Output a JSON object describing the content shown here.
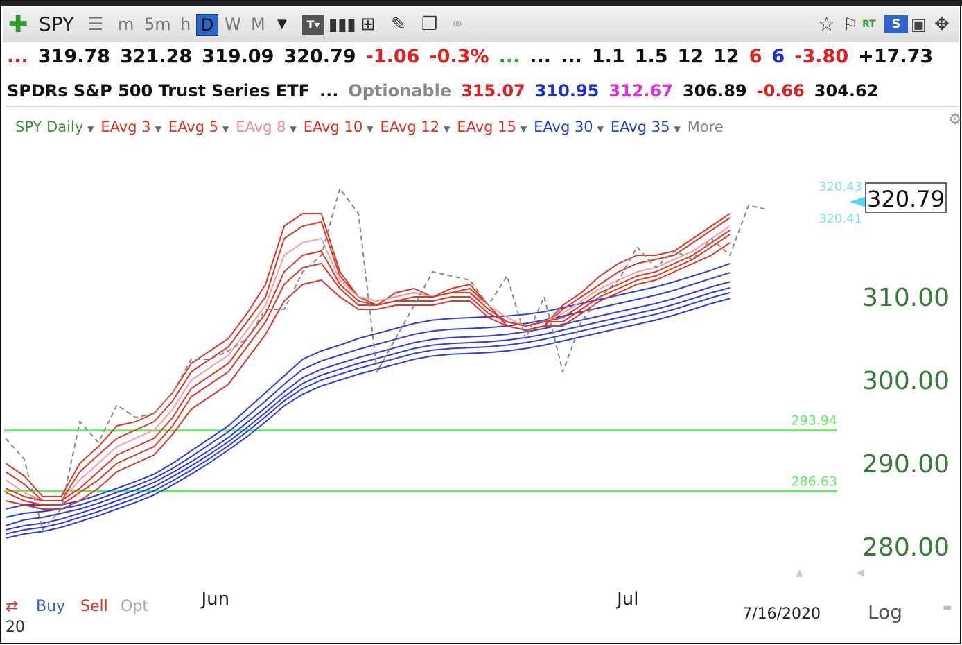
{
  "toolbar": {
    "symbol": "SPY",
    "intervals": [
      "m",
      "5m",
      "h",
      "D",
      "W",
      "M"
    ],
    "right_icons": [
      "star-icon",
      "flag-icon",
      "rt-icon",
      "sv-icon",
      "window-icon",
      "move-icon"
    ],
    "rt_label": "RT",
    "sv_label": "S"
  },
  "quote_row1": [
    {
      "text": "...",
      "color": "#d62020"
    },
    {
      "text": "319.78",
      "color": "#111111"
    },
    {
      "text": "321.28",
      "color": "#111111"
    },
    {
      "text": "319.09",
      "color": "#111111"
    },
    {
      "text": "320.79",
      "color": "#111111"
    },
    {
      "text": "-1.06",
      "color": "#e02020"
    },
    {
      "text": "-0.3%",
      "color": "#e02020"
    },
    {
      "text": "...",
      "color": "#22aa22"
    },
    {
      "text": "...",
      "color": "#111111"
    },
    {
      "text": "...",
      "color": "#111111"
    },
    {
      "text": "1.1",
      "color": "#111111"
    },
    {
      "text": "1.5",
      "color": "#111111"
    },
    {
      "text": "12",
      "color": "#111111"
    },
    {
      "text": "12",
      "color": "#111111"
    },
    {
      "text": "6",
      "color": "#e02020"
    },
    {
      "text": "6",
      "color": "#1a2fd6"
    },
    {
      "text": "-3.80",
      "color": "#e02020"
    },
    {
      "text": "+17.73",
      "color": "#111111"
    }
  ],
  "quote_row2": [
    {
      "text": "SPDRs S&P 500 Trust Series ETF",
      "color": "#111111"
    },
    {
      "text": "...",
      "color": "#111111"
    },
    {
      "text": "Optionable",
      "color": "#888888"
    },
    {
      "text": "315.07",
      "color": "#e02020"
    },
    {
      "text": "310.95",
      "color": "#1a2fd6"
    },
    {
      "text": "312.67",
      "color": "#e030e0"
    },
    {
      "text": "306.89",
      "color": "#111111"
    },
    {
      "text": "-0.66",
      "color": "#e02020"
    },
    {
      "text": "304.62",
      "color": "#111111"
    }
  ],
  "legend": [
    {
      "label": "SPY Daily",
      "color": "#3f8f3f"
    },
    {
      "label": "EAvg 3",
      "color": "#e03020"
    },
    {
      "label": "EAvg 5",
      "color": "#e03020"
    },
    {
      "label": "EAvg 8",
      "color": "#f08a8a"
    },
    {
      "label": "EAvg 10",
      "color": "#e03020"
    },
    {
      "label": "EAvg 12",
      "color": "#e03020"
    },
    {
      "label": "EAvg 15",
      "color": "#e03020"
    },
    {
      "label": "EAvg 30",
      "color": "#2040d8"
    },
    {
      "label": "EAvg 35",
      "color": "#2040d8"
    },
    {
      "label": "More",
      "color": "#888888"
    }
  ],
  "chart_data": {
    "type": "line",
    "y_axis_ticks": [
      310,
      300,
      290,
      280
    ],
    "y_tick_labels": [
      "310.00",
      "300.00",
      "290.00",
      "280.00"
    ],
    "ylim": [
      276.5,
      326.5
    ],
    "x_labels": [
      {
        "label": "Jun",
        "index": 11.3
      },
      {
        "label": "Jul",
        "index": 33.5
      }
    ],
    "date_label": "7/16/2020",
    "last_price_label": "320.79",
    "cyan_labels": [
      "320.43",
      "320.41"
    ],
    "horizontal_lines": [
      {
        "value": 293.94,
        "label": "293.94",
        "color": "#62e862"
      },
      {
        "value": 286.63,
        "label": "286.63",
        "color": "#62e862"
      }
    ],
    "close": [
      293,
      290.5,
      282,
      284.5,
      295,
      292.5,
      297,
      295.5,
      296,
      298.5,
      302.5,
      302.5,
      303.5,
      305,
      308.5,
      308.5,
      313,
      315,
      323,
      320,
      301,
      305,
      309,
      313,
      312.5,
      312,
      309,
      312.5,
      305,
      310,
      301,
      307,
      310,
      312,
      316,
      313.5,
      315.5,
      314.5,
      317,
      315,
      321,
      320.5
    ],
    "red_emas": [
      [
        290,
        288.5,
        286,
        286,
        290,
        292,
        294.5,
        295,
        296,
        298.5,
        302,
        303.5,
        305,
        308,
        311.5,
        318.5,
        320,
        320,
        313,
        310,
        309,
        310.5,
        311,
        310,
        311,
        311.5,
        309,
        306.5,
        306,
        306.5,
        309,
        310.5,
        312.5,
        314,
        315,
        315,
        315.5,
        317,
        318.5,
        320
      ],
      [
        289,
        287.5,
        285.5,
        285.5,
        289,
        291,
        293,
        294,
        295,
        297.5,
        301,
        302.5,
        304,
        307,
        310,
        317,
        318.5,
        319,
        312.5,
        310,
        309.5,
        310,
        310.5,
        310,
        310.5,
        311,
        309,
        306.5,
        306,
        306.5,
        308.5,
        310,
        311.5,
        313,
        314,
        314.5,
        315,
        316.5,
        318,
        319.5
      ],
      [
        288,
        286.5,
        285.5,
        285.5,
        288,
        290,
        292,
        293,
        294,
        296.5,
        300,
        301.5,
        303,
        306,
        309,
        315,
        316.5,
        317,
        312,
        310,
        309.5,
        310,
        310.5,
        310,
        310.5,
        310.5,
        309,
        307.5,
        306.5,
        307,
        308,
        309.5,
        311,
        312,
        313,
        313.5,
        314.5,
        315.5,
        317,
        318.5
      ],
      [
        287,
        286,
        285.5,
        285.5,
        287,
        289,
        291,
        292,
        293,
        295.5,
        299,
        300.5,
        302,
        305,
        308,
        313,
        315,
        315.5,
        311.5,
        309.5,
        309,
        309.5,
        310,
        310,
        310.5,
        310.5,
        308.5,
        307,
        306.5,
        307,
        307.5,
        309,
        310.5,
        311.5,
        312.5,
        313,
        314,
        315,
        316.5,
        318
      ],
      [
        286.5,
        285.5,
        285,
        285,
        286.5,
        288,
        290,
        291,
        292,
        294.5,
        298,
        299.5,
        301,
        304,
        307,
        311.5,
        313.5,
        314,
        311,
        309,
        309,
        309.5,
        309.5,
        309.5,
        310,
        310,
        308,
        307,
        306.5,
        307,
        307,
        308.5,
        310,
        311,
        312,
        312.5,
        313.5,
        314.5,
        316,
        317.5
      ],
      [
        285.5,
        285,
        284.5,
        284.5,
        285.5,
        287,
        289,
        290,
        291,
        293.5,
        296.5,
        298,
        299.5,
        302.5,
        305.5,
        309.5,
        311.5,
        312,
        310,
        308.5,
        308.5,
        309,
        309,
        309,
        309.5,
        309.5,
        307.5,
        306.5,
        306,
        306.5,
        306.5,
        308,
        309.5,
        310.5,
        311.5,
        312,
        313,
        314,
        315,
        316.5
      ]
    ],
    "blue_emas": [
      [
        284.5,
        285,
        285,
        285,
        285.5,
        286.2,
        287,
        287.8,
        288.7,
        290,
        291.5,
        293,
        294.5,
        296.5,
        298.5,
        300.5,
        302.5,
        303.5,
        304.2,
        305,
        305.6,
        306.2,
        306.8,
        307.2,
        307.4,
        307.5,
        307.6,
        307.7,
        307.9,
        308.2,
        308.7,
        309.2,
        309.7,
        310.2,
        310.7,
        311.2,
        311.8,
        312.5,
        313.2,
        314
      ],
      [
        283.5,
        284,
        284.2,
        284.5,
        285,
        285.7,
        286.5,
        287.3,
        288.2,
        289.4,
        290.8,
        292.3,
        293.8,
        295.6,
        297.5,
        299.5,
        301.3,
        302.3,
        303,
        303.7,
        304.3,
        304.9,
        305.5,
        305.9,
        306.1,
        306.2,
        306.3,
        306.5,
        306.8,
        307.2,
        307.7,
        308.2,
        308.7,
        309.2,
        309.7,
        310.2,
        310.8,
        311.5,
        312.2,
        312.9
      ],
      [
        282.5,
        283.2,
        283.5,
        284,
        284.5,
        285.2,
        286,
        286.8,
        287.7,
        288.9,
        290.2,
        291.6,
        293.1,
        294.9,
        296.7,
        298.6,
        300.3,
        301.3,
        302,
        302.7,
        303.3,
        303.9,
        304.5,
        304.9,
        305.1,
        305.2,
        305.3,
        305.5,
        305.8,
        306.2,
        306.7,
        307.2,
        307.7,
        308.2,
        308.7,
        309.2,
        309.8,
        310.5,
        311.2,
        311.8
      ],
      [
        282,
        282.5,
        282.8,
        283.3,
        284,
        284.7,
        285.5,
        286.3,
        287.2,
        288.4,
        289.7,
        291.1,
        292.6,
        294.3,
        296.1,
        298,
        299.6,
        300.6,
        301.3,
        302,
        302.6,
        303.2,
        303.8,
        304.2,
        304.4,
        304.5,
        304.6,
        304.8,
        305.1,
        305.5,
        306,
        306.5,
        307,
        307.5,
        308,
        308.5,
        309.1,
        309.8,
        310.5,
        311.1
      ],
      [
        281.5,
        282,
        282.3,
        282.8,
        283.5,
        284.2,
        285,
        285.8,
        286.7,
        287.9,
        289.2,
        290.6,
        292.1,
        293.8,
        295.6,
        297.5,
        299,
        300,
        300.7,
        301.4,
        302,
        302.6,
        303.2,
        303.6,
        303.8,
        303.9,
        304,
        304.2,
        304.5,
        304.9,
        305.4,
        305.9,
        306.4,
        306.9,
        307.4,
        307.9,
        308.5,
        309.2,
        309.9,
        310.5
      ],
      [
        281,
        281.5,
        281.8,
        282.3,
        283,
        283.7,
        284.5,
        285.3,
        286.2,
        287.4,
        288.7,
        290.1,
        291.6,
        293.2,
        295,
        296.9,
        298.3,
        299.3,
        300,
        300.7,
        301.3,
        301.9,
        302.5,
        302.9,
        303.1,
        303.2,
        303.3,
        303.5,
        303.8,
        304.2,
        304.7,
        305.2,
        305.7,
        306.2,
        306.7,
        307.2,
        307.8,
        308.5,
        309.2,
        309.8
      ]
    ],
    "colors": {
      "close": "#888888",
      "red": "#e03828",
      "red_light": "#f4a0a0",
      "blue": "#2d3fe0",
      "axis_text": "#3a7a3a",
      "level_line": "#62e862"
    }
  },
  "bottom": {
    "buy": "Buy",
    "sell": "Sell",
    "opt": "Opt",
    "year": "20",
    "scale": "Log"
  }
}
